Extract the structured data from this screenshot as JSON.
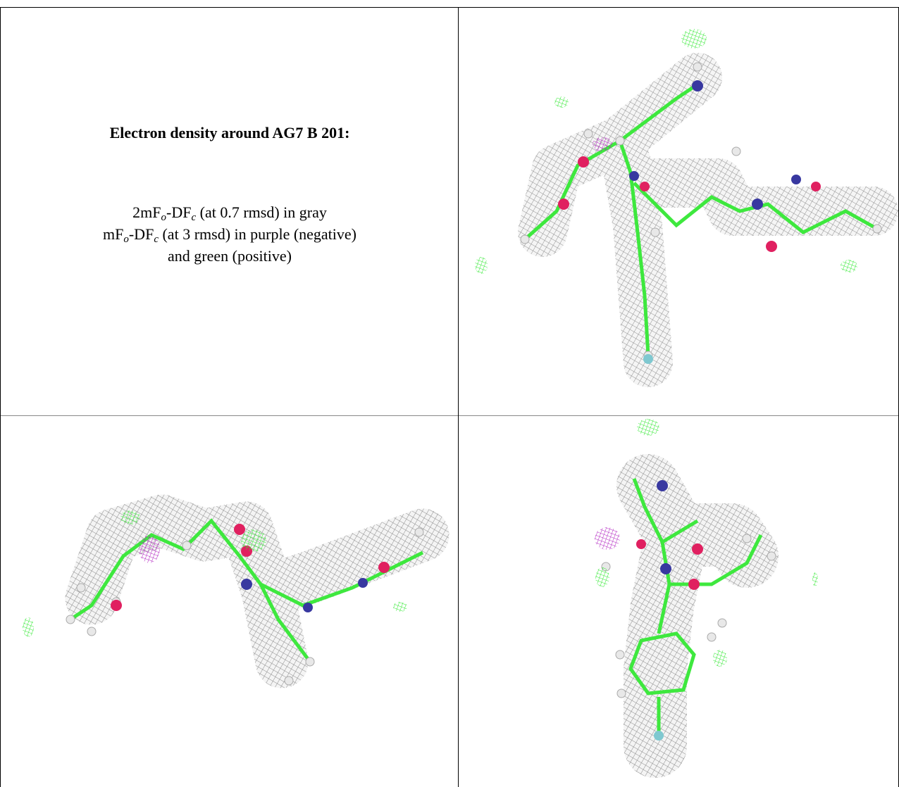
{
  "header": {
    "title": "Electron density around AG7 B 201:"
  },
  "legend": [
    [
      "2mF",
      "o",
      "-DF",
      "c",
      " (at 0.7 rmsd) in gray"
    ],
    [
      "mF",
      "o",
      "-DF",
      "c",
      " (at 3 rmsd) in purple (negative)"
    ],
    [
      "and green (positive)"
    ]
  ]
}
